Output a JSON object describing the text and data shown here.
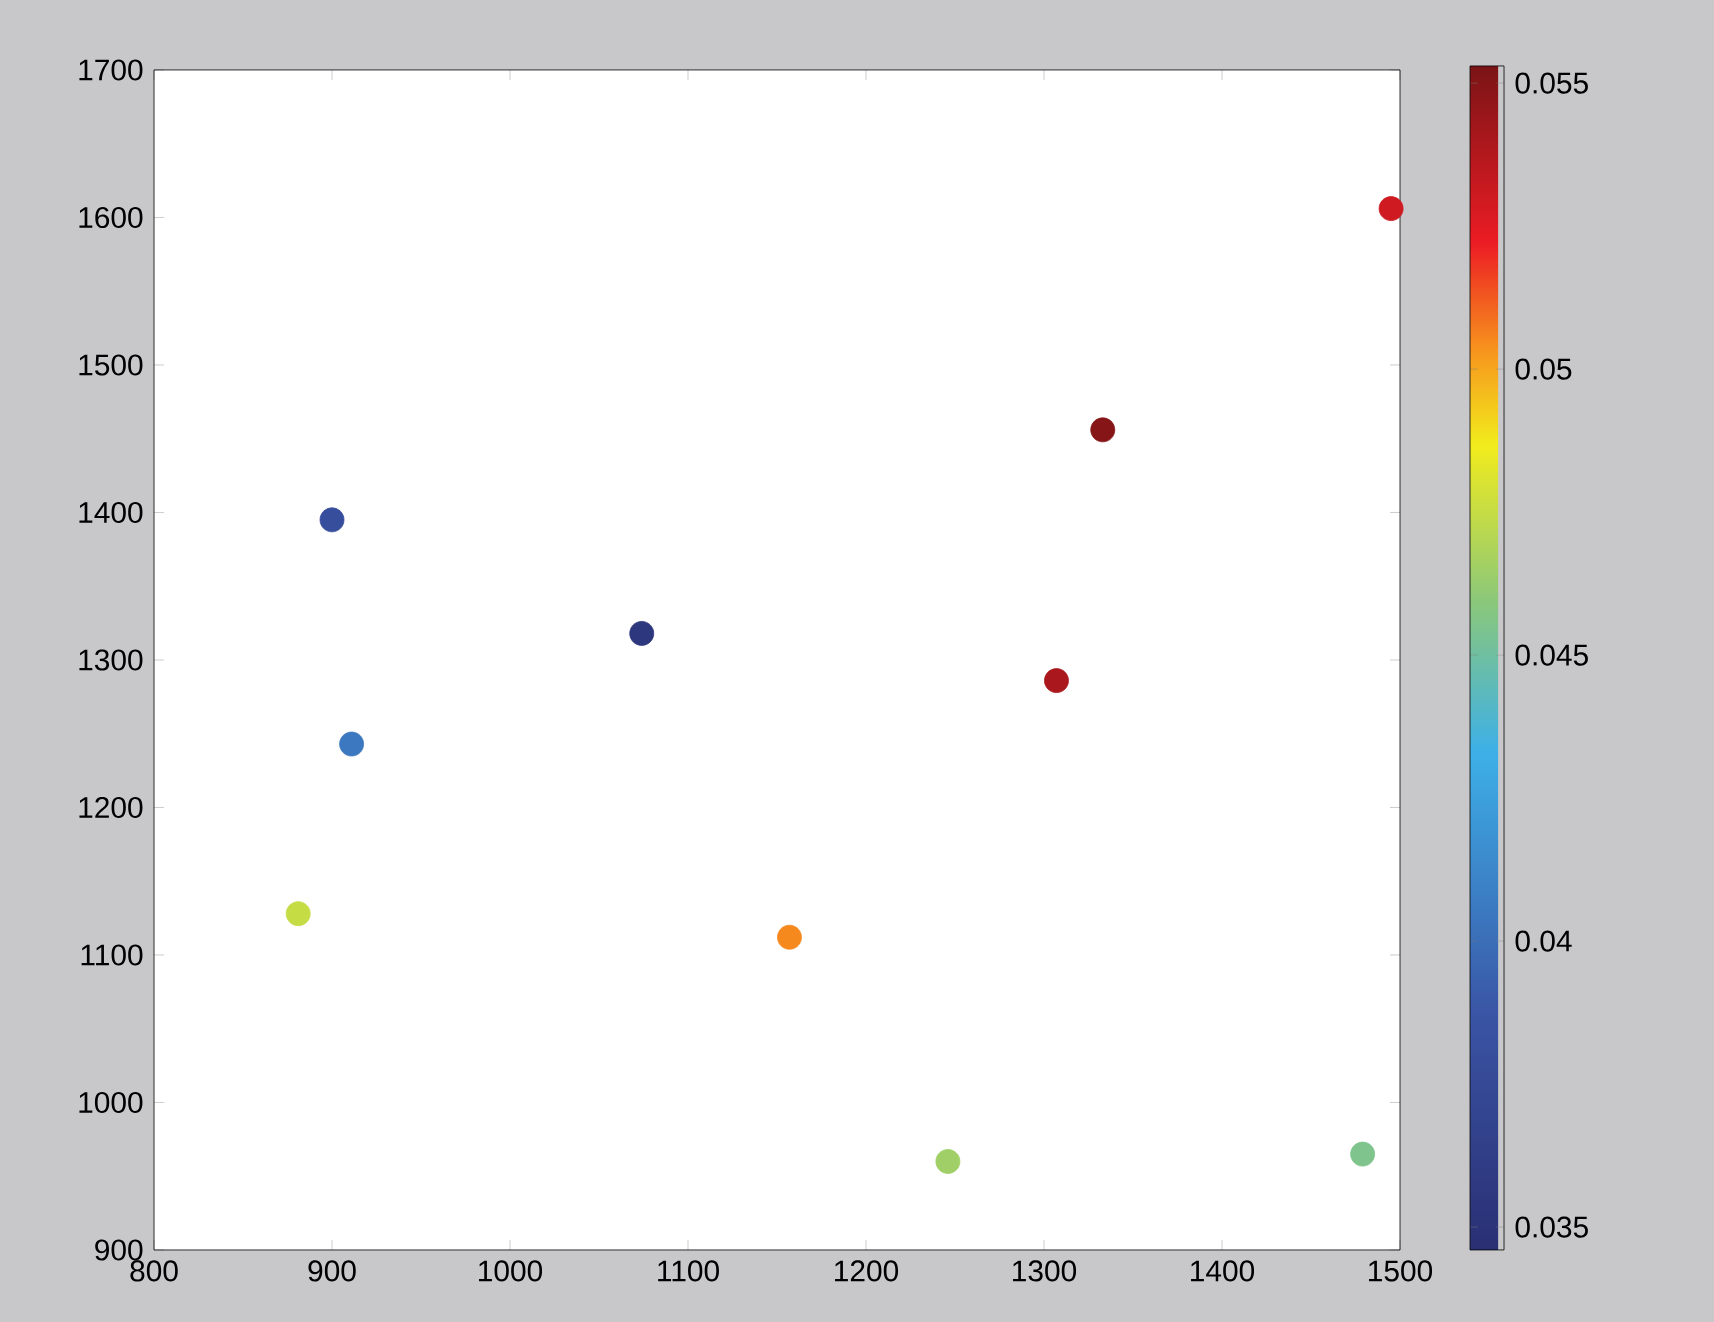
{
  "chart_data": {
    "type": "scatter",
    "x": [
      900,
      911,
      881,
      1074,
      1157,
      1246,
      1307,
      1333,
      1479,
      1495
    ],
    "values": [
      1395,
      1243,
      1128,
      1318,
      1112,
      960,
      1286,
      1456,
      965,
      1606
    ],
    "cvalues": [
      0.038,
      0.0405,
      0.0475,
      0.0355,
      0.0505,
      0.0465,
      0.054,
      0.055,
      0.0455,
      0.053
    ],
    "xlim": [
      800,
      1500
    ],
    "ylim": [
      900,
      1700
    ],
    "xticks": [
      800,
      900,
      1000,
      1100,
      1200,
      1300,
      1400,
      1500
    ],
    "yticks": [
      900,
      1000,
      1100,
      1200,
      1300,
      1400,
      1500,
      1600,
      1700
    ],
    "clim": [
      0.0346,
      0.0553
    ],
    "cticks": [
      0.035,
      0.04,
      0.045,
      0.05,
      0.055
    ],
    "marker": "circle"
  }
}
